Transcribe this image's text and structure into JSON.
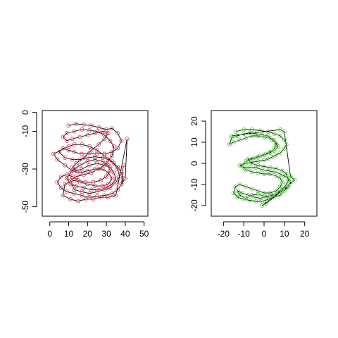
{
  "chart_data": [
    {
      "type": "scatter",
      "title": "",
      "xlabel": "",
      "ylabel": "",
      "xlim": [
        -4,
        52
      ],
      "ylim": [
        -55,
        1
      ],
      "xticks": [
        0,
        10,
        20,
        30,
        40,
        50
      ],
      "yticks": [
        0,
        -10,
        -30,
        -50
      ],
      "point_color": "#DF536B",
      "line_color": "#000000",
      "series": [
        {
          "values": [
            [
              10,
              -7
            ],
            [
              14,
              -6
            ],
            [
              18,
              -6.5
            ],
            [
              22,
              -7
            ],
            [
              26,
              -8
            ],
            [
              30,
              -9
            ],
            [
              33,
              -8.5
            ],
            [
              36,
              -11
            ],
            [
              38,
              -15
            ],
            [
              36,
              -19
            ],
            [
              33,
              -21
            ],
            [
              29,
              -22
            ],
            [
              25,
              -22
            ],
            [
              21,
              -21.5
            ],
            [
              17,
              -22
            ],
            [
              13,
              -21
            ],
            [
              10,
              -20
            ],
            [
              7,
              -19
            ],
            [
              5,
              -21
            ],
            [
              8,
              -24
            ],
            [
              12,
              -25
            ],
            [
              16,
              -25
            ],
            [
              20,
              -24
            ],
            [
              24,
              -23.5
            ],
            [
              28,
              -24
            ],
            [
              31,
              -25
            ],
            [
              34,
              -27
            ],
            [
              36,
              -29
            ],
            [
              38,
              -32
            ],
            [
              39,
              -35
            ],
            [
              38,
              -38
            ],
            [
              36,
              -41
            ],
            [
              33,
              -43
            ],
            [
              29,
              -44
            ],
            [
              25,
              -44.5
            ],
            [
              21,
              -45
            ],
            [
              17,
              -44
            ],
            [
              13,
              -43
            ],
            [
              9,
              -42
            ],
            [
              6,
              -40
            ],
            [
              4,
              -37
            ],
            [
              6,
              -34
            ],
            [
              9,
              -33
            ],
            [
              12,
              -34
            ],
            [
              15,
              -36
            ],
            [
              19,
              -37
            ],
            [
              23,
              -37
            ],
            [
              27,
              -36
            ],
            [
              30,
              -34
            ],
            [
              32,
              -31
            ],
            [
              31,
              -28
            ],
            [
              28,
              -26
            ],
            [
              24,
              -25
            ],
            [
              20,
              -26
            ],
            [
              16,
              -28
            ],
            [
              13,
              -30
            ],
            [
              11,
              -32
            ],
            [
              9,
              -35
            ],
            [
              11,
              -38
            ],
            [
              14,
              -39
            ],
            [
              18,
              -40
            ],
            [
              22,
              -41
            ],
            [
              26,
              -41
            ],
            [
              30,
              -40
            ],
            [
              33,
              -38
            ],
            [
              35,
              -35
            ],
            [
              34,
              -32
            ],
            [
              32,
              -29
            ],
            [
              29,
              -28
            ],
            [
              25,
              -27
            ],
            [
              21,
              -28
            ],
            [
              17,
              -30
            ],
            [
              14,
              -31
            ],
            [
              12,
              -29
            ],
            [
              14,
              -27
            ],
            [
              18,
              -24
            ],
            [
              22,
              -20
            ],
            [
              26,
              -17
            ],
            [
              29,
              -14
            ],
            [
              31,
              -11
            ],
            [
              28,
              -10
            ],
            [
              24,
              -11
            ],
            [
              20,
              -12
            ],
            [
              16,
              -13
            ],
            [
              12,
              -14
            ],
            [
              9,
              -15
            ],
            [
              7,
              -13
            ],
            [
              9,
              -11
            ],
            [
              13,
              -10
            ],
            [
              17,
              -9
            ],
            [
              21,
              -9.5
            ],
            [
              25,
              -10
            ],
            [
              29,
              -12
            ],
            [
              32,
              -15
            ],
            [
              34,
              -18
            ],
            [
              33,
              -23
            ],
            [
              30,
              -27
            ],
            [
              26,
              -30
            ],
            [
              22,
              -32
            ],
            [
              18,
              -33
            ],
            [
              14,
              -34
            ],
            [
              11,
              -36
            ],
            [
              13,
              -41
            ],
            [
              17,
              -42
            ],
            [
              21,
              -43
            ],
            [
              25,
              -42
            ],
            [
              29,
              -41
            ],
            [
              32,
              -40
            ],
            [
              35,
              -37
            ],
            [
              37,
              -34
            ],
            [
              36,
              -30
            ],
            [
              33,
              -26
            ],
            [
              29,
              -23
            ],
            [
              25,
              -20
            ],
            [
              21,
              -18
            ],
            [
              17,
              -17
            ],
            [
              13,
              -17
            ],
            [
              10,
              -18
            ],
            [
              2,
              -22
            ],
            [
              4,
              -25
            ],
            [
              8,
              -28
            ],
            [
              12,
              -31
            ],
            [
              16,
              -32
            ],
            [
              20,
              -31
            ],
            [
              24,
              -30
            ],
            [
              28,
              -30
            ],
            [
              31,
              -32
            ],
            [
              33,
              -35
            ],
            [
              31,
              -38
            ],
            [
              28,
              -39
            ],
            [
              24,
              -39
            ],
            [
              20,
              -38
            ],
            [
              16,
              -37
            ],
            [
              13,
              -36
            ],
            [
              8,
              -38
            ],
            [
              7,
              -44
            ],
            [
              11,
              -46
            ],
            [
              15,
              -47
            ],
            [
              19,
              -46
            ],
            [
              23,
              -46
            ],
            [
              27,
              -45
            ],
            [
              31,
              -45
            ],
            [
              35,
              -44
            ],
            [
              41,
              -14
            ],
            [
              40,
              -35
            ],
            [
              38,
              -38
            ],
            [
              39,
              -28
            ]
          ]
        }
      ]
    },
    {
      "type": "scatter",
      "title": "",
      "xlabel": "",
      "ylabel": "",
      "xlim": [
        -26,
        26
      ],
      "ylim": [
        -25,
        25
      ],
      "xticks": [
        -20,
        -10,
        0,
        10,
        20
      ],
      "yticks": [
        20,
        10,
        0,
        -10,
        -20
      ],
      "point_color": "#61D04F",
      "line_color": "#000000",
      "series": [
        {
          "values": [
            [
              -14,
              15
            ],
            [
              -10,
              16
            ],
            [
              -6,
              16
            ],
            [
              -2,
              15.5
            ],
            [
              2,
              15
            ],
            [
              5,
              14
            ],
            [
              8,
              13
            ],
            [
              10,
              11
            ],
            [
              11,
              9
            ],
            [
              10,
              7
            ],
            [
              8,
              5
            ],
            [
              6,
              4
            ],
            [
              4,
              3
            ],
            [
              2,
              2
            ],
            [
              0,
              1.5
            ],
            [
              -3,
              1
            ],
            [
              -6,
              0.5
            ],
            [
              -9,
              0
            ],
            [
              -12,
              -1
            ],
            [
              -10,
              -2
            ],
            [
              -7,
              -2
            ],
            [
              -4,
              -2
            ],
            [
              -1,
              -3
            ],
            [
              2,
              -3.5
            ],
            [
              5,
              -4
            ],
            [
              8,
              -5
            ],
            [
              10,
              -6
            ],
            [
              12,
              -7
            ],
            [
              13,
              -9
            ],
            [
              12,
              -11
            ],
            [
              10,
              -13
            ],
            [
              8,
              -15
            ],
            [
              5,
              -16
            ],
            [
              2,
              -17
            ],
            [
              -1,
              -18
            ],
            [
              -4,
              -18
            ],
            [
              -7,
              -17.5
            ],
            [
              -10,
              -17
            ],
            [
              -13,
              -16
            ],
            [
              -15,
              -14
            ],
            [
              -14,
              -11
            ],
            [
              -12,
              -10
            ],
            [
              -9,
              -11
            ],
            [
              -6,
              -12
            ],
            [
              -3,
              -13
            ],
            [
              0,
              -14
            ],
            [
              3,
              -14
            ],
            [
              6,
              -13
            ],
            [
              8,
              -11
            ],
            [
              9,
              -9
            ],
            [
              8,
              -7
            ],
            [
              6,
              -6
            ],
            [
              3,
              -5
            ],
            [
              0,
              -5
            ],
            [
              -3,
              -4.5
            ],
            [
              -6,
              -4
            ],
            [
              -9,
              -3
            ],
            [
              -11,
              -1
            ],
            [
              -9,
              1
            ],
            [
              -6,
              2
            ],
            [
              -3,
              3
            ],
            [
              0,
              4
            ],
            [
              3,
              5
            ],
            [
              5,
              7
            ],
            [
              6,
              9
            ],
            [
              5,
              11
            ],
            [
              3,
              12
            ],
            [
              0,
              12.5
            ],
            [
              -3,
              13
            ],
            [
              -6,
              13
            ],
            [
              -9,
              12
            ],
            [
              -12,
              11
            ],
            [
              -15,
              10
            ],
            [
              -17,
              9
            ],
            [
              -16,
              12
            ],
            [
              -13,
              13
            ],
            [
              -10,
              14
            ],
            [
              -7,
              14.5
            ],
            [
              -4,
              14
            ],
            [
              -1,
              13.5
            ],
            [
              2,
              13
            ],
            [
              4,
              11
            ],
            [
              6,
              9.5
            ],
            [
              7,
              8
            ],
            [
              5,
              6
            ],
            [
              3,
              5.5
            ],
            [
              1,
              4.5
            ],
            [
              -2,
              3.5
            ],
            [
              -5,
              2.5
            ],
            [
              -8,
              2
            ],
            [
              -6,
              0
            ],
            [
              -3,
              -1
            ],
            [
              0,
              -1.5
            ],
            [
              3,
              -2
            ],
            [
              6,
              -2.5
            ],
            [
              9,
              -3.5
            ],
            [
              11,
              -5
            ],
            [
              12,
              -8
            ],
            [
              11,
              -10
            ],
            [
              9,
              -12
            ],
            [
              7,
              -13.5
            ],
            [
              4,
              -15
            ],
            [
              1,
              -16
            ],
            [
              -2,
              -16.5
            ],
            [
              -5,
              -16
            ],
            [
              -8,
              -15
            ],
            [
              -11,
              -14
            ],
            [
              -13,
              -13
            ],
            [
              -12,
              -15
            ],
            [
              -9,
              -16.5
            ],
            [
              -6,
              -15
            ],
            [
              -3,
              -14.5
            ],
            [
              0,
              -15.5
            ],
            [
              3,
              -15.5
            ],
            [
              6,
              -15
            ],
            [
              9,
              -13
            ],
            [
              11,
              -11.5
            ],
            [
              1,
              -19
            ],
            [
              -1,
              -20
            ],
            [
              15,
              -8
            ],
            [
              13,
              -6
            ],
            [
              10,
              15
            ],
            [
              8,
              16
            ],
            [
              -16,
              13
            ]
          ]
        }
      ]
    }
  ]
}
